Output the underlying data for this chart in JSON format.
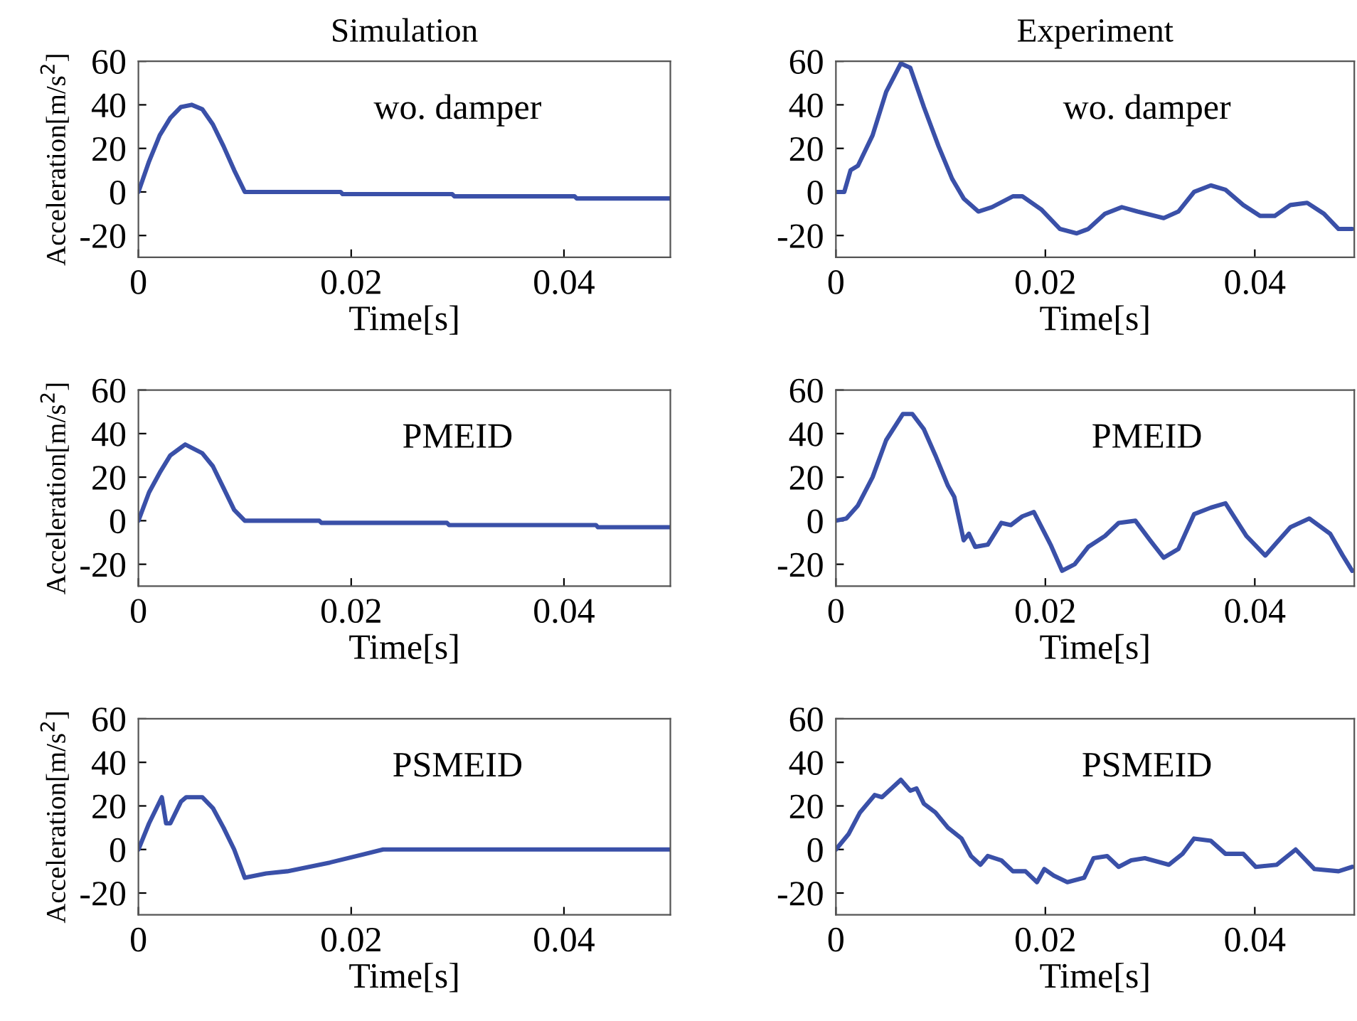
{
  "chart_data": [
    {
      "type": "line",
      "title": "Simulation",
      "xlabel": "Time[s]",
      "ylabel": "Acceleration[m/s$^{2}$]",
      "annotations": [
        "wo. damper"
      ],
      "xlim": [
        0,
        0.05
      ],
      "ylim": [
        -30,
        60
      ],
      "xticks": [
        0,
        0.02,
        0.04
      ],
      "yticks": [
        -20,
        0,
        20,
        40,
        60
      ],
      "series": [
        {
          "color": "#3a50a8",
          "x": [
            0,
            0.001,
            0.002,
            0.003,
            0.004,
            0.005,
            0.006,
            0.007,
            0.008,
            0.009,
            0.01,
            0.019,
            0.0192,
            0.0295,
            0.0297,
            0.041,
            0.0412,
            0.05
          ],
          "values": [
            0,
            14,
            26,
            34,
            39,
            40,
            38,
            31,
            21,
            10,
            0,
            0,
            -1,
            -1,
            -2,
            -2,
            -3,
            -3
          ]
        }
      ]
    },
    {
      "type": "line",
      "title": "Experiment",
      "xlabel": "Time[s]",
      "annotations": [
        "wo. damper"
      ],
      "xlim": [
        0,
        0.0495
      ],
      "ylim": [
        -30,
        60
      ],
      "xticks": [
        0,
        0.02,
        0.04
      ],
      "yticks": [
        -20,
        0,
        20,
        40,
        60
      ],
      "series": [
        {
          "color": "#3a50a8",
          "x": [
            0,
            0.0008,
            0.0014,
            0.0021,
            0.0035,
            0.0048,
            0.0062,
            0.0071,
            0.0084,
            0.0098,
            0.0111,
            0.0122,
            0.0136,
            0.0149,
            0.0169,
            0.0178,
            0.0196,
            0.0214,
            0.023,
            0.0241,
            0.0257,
            0.0273,
            0.0288,
            0.0313,
            0.0327,
            0.0342,
            0.0358,
            0.0372,
            0.0389,
            0.0405,
            0.0419,
            0.0434,
            0.045,
            0.0466,
            0.048,
            0.0493
          ],
          "values": [
            0,
            0,
            10,
            12,
            26,
            46,
            59,
            57,
            39,
            21,
            6,
            -3,
            -9,
            -7,
            -2,
            -2,
            -8,
            -17,
            -19,
            -17,
            -10,
            -7,
            -9,
            -12,
            -9,
            0,
            3,
            1,
            -6,
            -11,
            -11,
            -6,
            -5,
            -10,
            -17,
            -17
          ]
        }
      ]
    },
    {
      "type": "line",
      "xlabel": "Time[s]",
      "ylabel": "Acceleration[m/s$^{2}$]",
      "annotations": [
        "PMEID"
      ],
      "xlim": [
        0,
        0.05
      ],
      "ylim": [
        -30,
        60
      ],
      "xticks": [
        0,
        0.02,
        0.04
      ],
      "yticks": [
        -20,
        0,
        20,
        40,
        60
      ],
      "series": [
        {
          "color": "#3a50a8",
          "x": [
            0,
            0.001,
            0.002,
            0.003,
            0.0044,
            0.006,
            0.007,
            0.008,
            0.009,
            0.01,
            0.017,
            0.0172,
            0.029,
            0.0292,
            0.043,
            0.0432,
            0.05
          ],
          "values": [
            0,
            13,
            22,
            30,
            35,
            31,
            25,
            15,
            5,
            0,
            0,
            -1,
            -1,
            -2,
            -2,
            -3,
            -3
          ]
        }
      ]
    },
    {
      "type": "line",
      "xlabel": "Time[s]",
      "annotations": [
        "PMEID"
      ],
      "xlim": [
        0,
        0.0495
      ],
      "ylim": [
        -30,
        60
      ],
      "xticks": [
        0,
        0.02,
        0.04
      ],
      "yticks": [
        -20,
        0,
        20,
        40,
        60
      ],
      "series": [
        {
          "color": "#3a50a8",
          "x": [
            0,
            0.001,
            0.0021,
            0.0035,
            0.0048,
            0.0064,
            0.0073,
            0.0084,
            0.0095,
            0.0107,
            0.0113,
            0.0122,
            0.0127,
            0.0133,
            0.0145,
            0.0158,
            0.0167,
            0.0178,
            0.0189,
            0.0205,
            0.0216,
            0.0228,
            0.0241,
            0.0257,
            0.027,
            0.0286,
            0.03,
            0.0313,
            0.0327,
            0.0342,
            0.0358,
            0.0372,
            0.0392,
            0.041,
            0.0421,
            0.0434,
            0.0452,
            0.0472,
            0.0484,
            0.0493
          ],
          "values": [
            0,
            1,
            7,
            20,
            37,
            49,
            49,
            42,
            30,
            16,
            11,
            -9,
            -6,
            -12,
            -11,
            -1,
            -2,
            2,
            4,
            -11,
            -23,
            -20,
            -12,
            -7,
            -1,
            0,
            -9,
            -17,
            -13,
            3,
            6,
            8,
            -7,
            -16,
            -10,
            -3,
            1,
            -6,
            -16,
            -23
          ]
        }
      ]
    },
    {
      "type": "line",
      "xlabel": "Time[s]",
      "ylabel": "Acceleration[m/s$^{2}$]",
      "annotations": [
        "PSMEID"
      ],
      "xlim": [
        0,
        0.05
      ],
      "ylim": [
        -30,
        60
      ],
      "xticks": [
        0,
        0.02,
        0.04
      ],
      "yticks": [
        -20,
        0,
        20,
        40,
        60
      ],
      "series": [
        {
          "color": "#3a50a8",
          "x": [
            0,
            0.001,
            0.0022,
            0.0026,
            0.003,
            0.004,
            0.0045,
            0.006,
            0.007,
            0.008,
            0.009,
            0.01,
            0.012,
            0.014,
            0.018,
            0.023,
            0.05
          ],
          "values": [
            0,
            12,
            24,
            12,
            12,
            22,
            24,
            24,
            19,
            10,
            0,
            -13,
            -11,
            -10,
            -6,
            0,
            0
          ]
        }
      ]
    },
    {
      "type": "line",
      "xlabel": "Time[s]",
      "annotations": [
        "PSMEID"
      ],
      "xlim": [
        0,
        0.0495
      ],
      "ylim": [
        -30,
        60
      ],
      "xticks": [
        0,
        0.02,
        0.04
      ],
      "yticks": [
        -20,
        0,
        20,
        40,
        60
      ],
      "series": [
        {
          "color": "#3a50a8",
          "x": [
            0,
            0.0012,
            0.0023,
            0.0037,
            0.0044,
            0.0062,
            0.0071,
            0.0077,
            0.0084,
            0.0095,
            0.0107,
            0.012,
            0.0129,
            0.0138,
            0.0145,
            0.0158,
            0.0169,
            0.0181,
            0.0192,
            0.0199,
            0.0208,
            0.0221,
            0.0237,
            0.0246,
            0.0259,
            0.027,
            0.0282,
            0.0295,
            0.0318,
            0.0331,
            0.0342,
            0.0358,
            0.0372,
            0.0389,
            0.0401,
            0.0421,
            0.0439,
            0.0457,
            0.048,
            0.0493
          ],
          "values": [
            0,
            7,
            17,
            25,
            24,
            32,
            27,
            28,
            21,
            17,
            10,
            5,
            -3,
            -7,
            -3,
            -5,
            -10,
            -10,
            -15,
            -9,
            -12,
            -15,
            -13,
            -4,
            -3,
            -8,
            -5,
            -4,
            -7,
            -2,
            5,
            4,
            -2,
            -2,
            -8,
            -7,
            0,
            -9,
            -10,
            -8
          ]
        }
      ]
    }
  ]
}
